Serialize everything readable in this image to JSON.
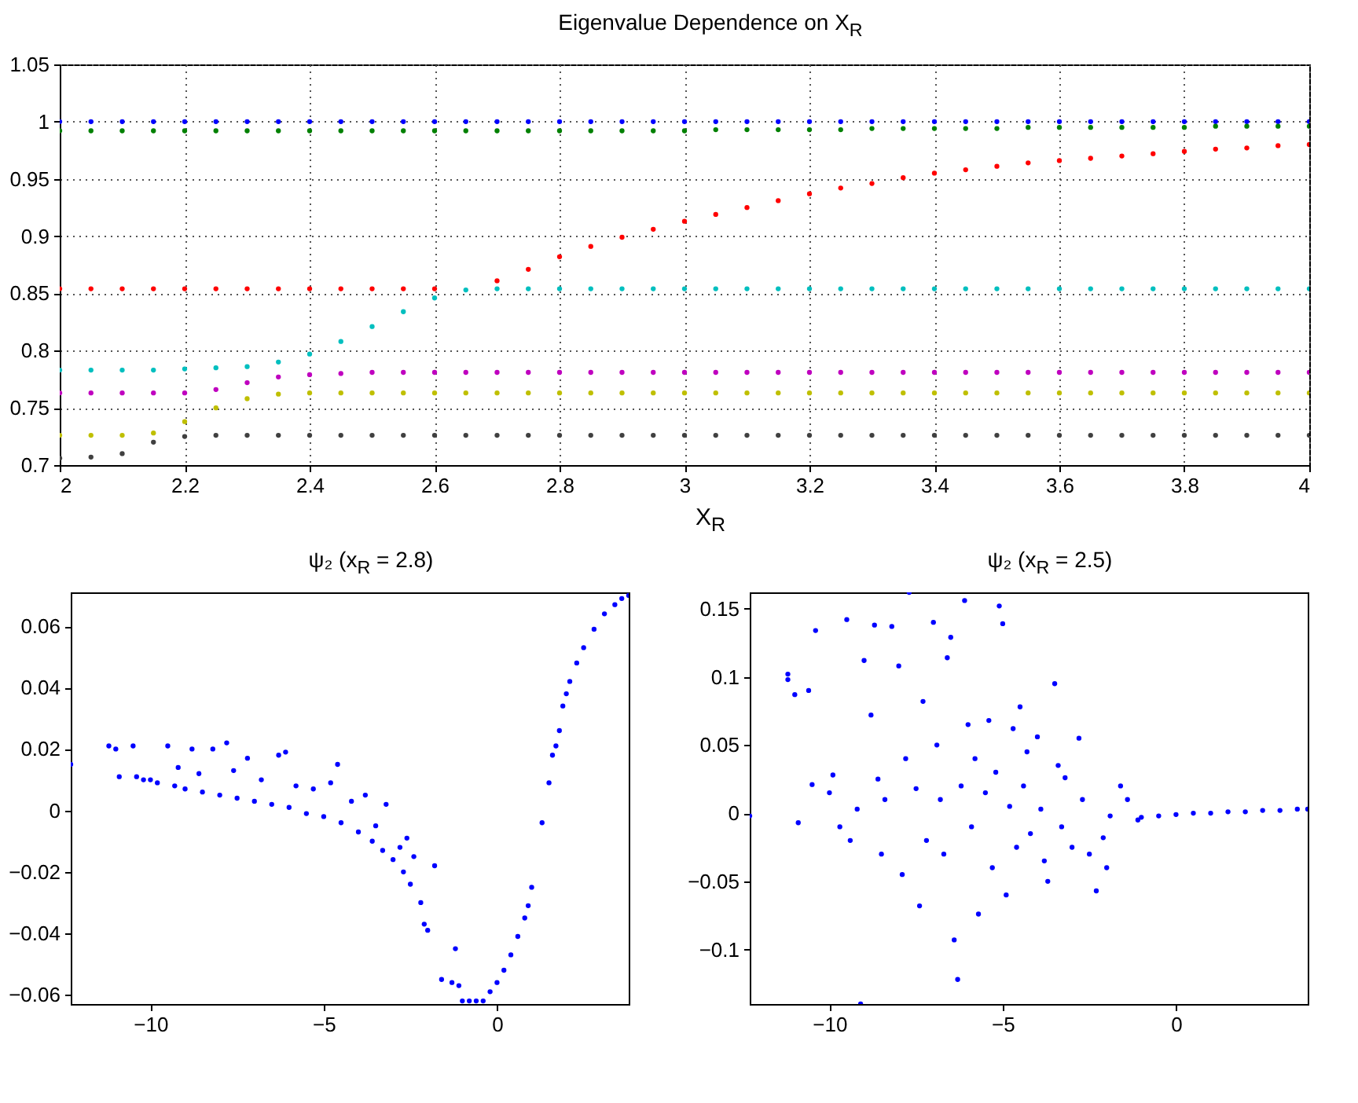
{
  "chart_data": [
    {
      "type": "scatter",
      "title": "Eigenvalue Dependence on X$_{R}$",
      "xlabel": "X$_{R}$",
      "marker": "circle",
      "grid": true,
      "legend": false,
      "x": [
        2,
        2.05,
        2.1,
        2.15,
        2.2,
        2.25,
        2.3,
        2.35,
        2.4,
        2.45,
        2.5,
        2.55,
        2.6,
        2.65,
        2.7,
        2.75,
        2.8,
        2.85,
        2.9,
        2.95,
        3,
        3.05,
        3.1,
        3.15,
        3.2,
        3.25,
        3.3,
        3.35,
        3.4,
        3.45,
        3.5,
        3.55,
        3.6,
        3.65,
        3.7,
        3.75,
        3.8,
        3.85,
        3.9,
        3.95,
        4
      ],
      "xlim": [
        2,
        4
      ],
      "xticks": [
        2,
        2.2,
        2.4,
        2.6,
        2.8,
        3,
        3.2,
        3.4,
        3.6,
        3.8,
        4
      ],
      "ylim": [
        0.7,
        1.05
      ],
      "yticks": [
        0.7,
        0.75,
        0.8,
        0.85,
        0.9,
        0.95,
        1,
        1.05
      ],
      "series": [
        {
          "color": "#0000ff",
          "values": [
            1,
            1,
            1,
            1,
            1,
            1,
            1,
            1,
            1,
            1,
            1,
            1,
            1,
            1,
            1,
            1,
            1,
            1,
            1,
            1,
            1,
            1,
            1,
            1,
            1,
            1,
            1,
            1,
            1,
            1,
            1,
            1,
            1,
            1,
            1,
            1,
            1,
            1,
            1,
            1,
            1
          ]
        },
        {
          "color": "#008000",
          "values": [
            0.992,
            0.992,
            0.992,
            0.992,
            0.992,
            0.992,
            0.992,
            0.992,
            0.992,
            0.992,
            0.992,
            0.992,
            0.992,
            0.992,
            0.992,
            0.992,
            0.992,
            0.992,
            0.992,
            0.992,
            0.992,
            0.993,
            0.993,
            0.993,
            0.993,
            0.993,
            0.994,
            0.994,
            0.994,
            0.994,
            0.994,
            0.995,
            0.995,
            0.995,
            0.995,
            0.995,
            0.995,
            0.996,
            0.996,
            0.996,
            0.996
          ]
        },
        {
          "color": "#ff0000",
          "values": [
            0.854,
            0.854,
            0.854,
            0.854,
            0.854,
            0.854,
            0.854,
            0.854,
            0.854,
            0.854,
            0.854,
            0.854,
            0.854,
            null,
            0.861,
            0.871,
            0.882,
            0.891,
            0.899,
            0.906,
            0.913,
            0.919,
            0.925,
            0.931,
            0.937,
            0.942,
            0.946,
            0.951,
            0.955,
            0.958,
            0.961,
            0.964,
            0.966,
            0.968,
            0.97,
            0.972,
            0.974,
            0.976,
            0.977,
            0.979,
            0.98
          ]
        },
        {
          "color": "#00bfbf",
          "values": [
            0.783,
            0.783,
            0.783,
            0.783,
            0.784,
            0.785,
            0.786,
            0.79,
            0.797,
            0.808,
            0.821,
            0.834,
            0.846,
            0.853,
            0.854,
            0.854,
            0.854,
            0.854,
            0.854,
            0.854,
            0.854,
            0.854,
            0.854,
            0.854,
            0.854,
            0.854,
            0.854,
            0.854,
            0.854,
            0.854,
            0.854,
            0.854,
            0.854,
            0.854,
            0.854,
            0.854,
            0.854,
            0.854,
            0.854,
            0.854,
            0.854
          ]
        },
        {
          "color": "#bf00bf",
          "values": [
            0.763,
            0.763,
            0.763,
            0.763,
            0.763,
            0.766,
            0.772,
            0.777,
            0.779,
            0.78,
            0.781,
            0.781,
            0.781,
            0.781,
            0.781,
            0.781,
            0.781,
            0.781,
            0.781,
            0.781,
            0.781,
            0.781,
            0.781,
            0.781,
            0.781,
            0.781,
            0.781,
            0.781,
            0.781,
            0.781,
            0.781,
            0.781,
            0.781,
            0.781,
            0.781,
            0.781,
            0.781,
            0.781,
            0.781,
            0.781,
            0.781
          ]
        },
        {
          "color": "#bfbf00",
          "values": [
            0.726,
            0.726,
            0.726,
            0.728,
            0.738,
            0.75,
            0.758,
            0.762,
            0.763,
            0.763,
            0.763,
            0.763,
            0.763,
            0.763,
            0.763,
            0.763,
            0.763,
            0.763,
            0.763,
            0.763,
            0.763,
            0.763,
            0.763,
            0.763,
            0.763,
            0.763,
            0.763,
            0.763,
            0.763,
            0.763,
            0.763,
            0.763,
            0.763,
            0.763,
            0.763,
            0.763,
            0.763,
            0.763,
            0.763,
            0.763,
            0.763
          ]
        },
        {
          "color": "#404040",
          "values": [
            0.706,
            0.707,
            0.71,
            0.72,
            0.725,
            0.726,
            0.726,
            0.726,
            0.726,
            0.726,
            0.726,
            0.726,
            0.726,
            0.726,
            0.726,
            0.726,
            0.726,
            0.726,
            0.726,
            0.726,
            0.726,
            0.726,
            0.726,
            0.726,
            0.726,
            0.726,
            0.726,
            0.726,
            0.726,
            0.726,
            0.726,
            0.726,
            0.726,
            0.726,
            0.726,
            0.726,
            0.726,
            0.726,
            0.726,
            0.726,
            0.726
          ]
        }
      ]
    },
    {
      "type": "scatter",
      "title": "ψ₂ (x$_{R}$ = 2.8)",
      "marker": "circle",
      "legend": false,
      "xlim": [
        -12.3,
        3.8
      ],
      "xticks": [
        -10,
        -5,
        0
      ],
      "ylim": [
        -0.063,
        0.071
      ],
      "yticks": [
        -0.06,
        -0.04,
        -0.02,
        0,
        0.02,
        0.04,
        0.06
      ],
      "series": [
        {
          "color": "#0000ff",
          "x": [
            -12.3,
            -11.2,
            -11,
            -10.9,
            -10.5,
            -10.4,
            -10.2,
            -10,
            -9.8,
            -9.5,
            -9.3,
            -9.2,
            -9,
            -8.8,
            -8.6,
            -8.5,
            -8.2,
            -8,
            -7.8,
            -7.6,
            -7.5,
            -7.2,
            -7,
            -6.8,
            -6.5,
            -6.3,
            -6.1,
            -6,
            -5.8,
            -5.5,
            -5.3,
            -5,
            -4.8,
            -4.6,
            -4.5,
            -4.2,
            -4,
            -3.8,
            -3.6,
            -3.5,
            -3.3,
            -3.2,
            -3,
            -2.8,
            -2.7,
            -2.6,
            -2.5,
            -2.4,
            -2.2,
            -2.1,
            -2,
            -1.8,
            -1.6,
            -1.3,
            -1.2,
            -1.1,
            -1,
            -0.8,
            -0.6,
            -0.4,
            -0.2,
            0,
            0.2,
            0.4,
            0.6,
            0.8,
            0.9,
            1,
            1.3,
            1.5,
            1.6,
            1.7,
            1.8,
            1.9,
            2,
            2.1,
            2.3,
            2.5,
            2.8,
            3.1,
            3.4,
            3.6,
            3.8
          ],
          "values": [
            0.015,
            0.021,
            0.02,
            0.011,
            0.021,
            0.011,
            0.01,
            0.01,
            0.009,
            0.021,
            0.008,
            0.014,
            0.007,
            0.02,
            0.012,
            0.006,
            0.02,
            0.005,
            0.022,
            0.013,
            0.004,
            0.017,
            0.003,
            0.01,
            0.002,
            0.018,
            0.019,
            0.001,
            0.008,
            -0.001,
            0.007,
            -0.002,
            0.009,
            0.015,
            -0.004,
            0.003,
            -0.007,
            0.005,
            -0.01,
            -0.005,
            -0.013,
            0.002,
            -0.016,
            -0.012,
            -0.02,
            -0.009,
            -0.024,
            -0.015,
            -0.03,
            -0.037,
            -0.039,
            -0.018,
            -0.055,
            -0.056,
            -0.045,
            -0.057,
            -0.062,
            -0.062,
            -0.062,
            -0.062,
            -0.059,
            -0.056,
            -0.052,
            -0.047,
            -0.041,
            -0.035,
            -0.031,
            -0.025,
            -0.004,
            0.009,
            0.018,
            0.021,
            0.026,
            0.034,
            0.038,
            0.042,
            0.048,
            0.053,
            0.059,
            0.064,
            0.067,
            0.069,
            0.07
          ]
        }
      ]
    },
    {
      "type": "scatter",
      "title": "ψ₂ (x$_{R}$ = 2.5)",
      "marker": "circle",
      "legend": false,
      "xlim": [
        -12.3,
        3.8
      ],
      "xticks": [
        -10,
        -5,
        0
      ],
      "ylim": [
        -0.14,
        0.162
      ],
      "yticks": [
        -0.1,
        -0.05,
        0,
        0.05,
        0.1,
        0.15
      ],
      "series": [
        {
          "color": "#0000ff",
          "x": [
            -12.3,
            -11.2,
            -11.2,
            -11,
            -10.6,
            -10.4,
            -10.5,
            -10.9,
            -10,
            -9.9,
            -9.7,
            -9.5,
            -9.4,
            -9.2,
            -9,
            -9.1,
            -8.8,
            -8.7,
            -8.6,
            -8.5,
            -8.4,
            -8.2,
            -8,
            -7.9,
            -7.8,
            -7.7,
            -7.5,
            -7.4,
            -7.3,
            -7.2,
            -7,
            -6.9,
            -6.8,
            -6.7,
            -6.6,
            -6.5,
            -6.4,
            -6.3,
            -6.2,
            -6.1,
            -6,
            -5.9,
            -5.8,
            -5.7,
            -5.5,
            -5.4,
            -5.3,
            -5.2,
            -5.1,
            -5,
            -4.9,
            -4.8,
            -4.7,
            -4.6,
            -4.5,
            -4.4,
            -4.3,
            -4.2,
            -4,
            -3.9,
            -3.8,
            -3.7,
            -3.5,
            -3.4,
            -3.3,
            -3.2,
            -3,
            -2.8,
            -2.7,
            -2.5,
            -2.3,
            -2.1,
            -2,
            -1.9,
            -1.6,
            -1.4,
            -1.1,
            -1,
            -0.5,
            0,
            0.5,
            1,
            1.5,
            2,
            2.5,
            3,
            3.5,
            3.8
          ],
          "values": [
            -0.002,
            0.102,
            0.098,
            0.087,
            0.09,
            0.134,
            0.021,
            -0.007,
            0.015,
            0.028,
            -0.01,
            0.142,
            -0.02,
            0.003,
            0.112,
            -0.14,
            0.072,
            0.138,
            0.025,
            -0.03,
            0.01,
            0.137,
            0.108,
            -0.045,
            0.04,
            0.162,
            0.018,
            -0.068,
            0.082,
            -0.02,
            0.14,
            0.05,
            0.01,
            -0.03,
            0.114,
            0.129,
            -0.093,
            -0.122,
            0.02,
            0.156,
            0.065,
            -0.01,
            0.04,
            -0.074,
            0.015,
            0.068,
            -0.04,
            0.03,
            0.152,
            0.139,
            -0.06,
            0.005,
            0.062,
            -0.025,
            0.078,
            0.02,
            0.045,
            -0.015,
            0.056,
            0.003,
            -0.035,
            -0.05,
            0.095,
            0.035,
            -0.01,
            0.026,
            -0.025,
            0.055,
            0.01,
            -0.03,
            -0.057,
            -0.018,
            -0.04,
            -0.002,
            0.02,
            0.01,
            -0.005,
            -0.003,
            -0.002,
            -0.001,
            0,
            0,
            0.001,
            0.001,
            0.002,
            0.002,
            0.003,
            0.003
          ]
        }
      ]
    }
  ]
}
